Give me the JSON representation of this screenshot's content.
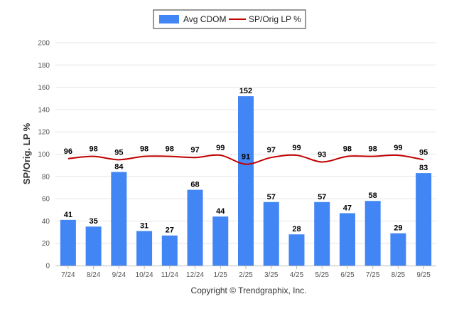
{
  "chart_data": {
    "type": "bar",
    "title": "",
    "ylabel": "SP/Orig. LP %",
    "xlabel": "",
    "ylim": [
      0,
      200
    ],
    "yticks": [
      0,
      20,
      40,
      60,
      80,
      100,
      120,
      140,
      160,
      180,
      200
    ],
    "categories": [
      "7/24",
      "8/24",
      "9/24",
      "10/24",
      "11/24",
      "12/24",
      "1/25",
      "2/25",
      "3/25",
      "4/25",
      "5/25",
      "6/25",
      "7/25",
      "8/25",
      "9/25"
    ],
    "series": [
      {
        "name": "Avg CDOM",
        "type": "bar",
        "color": "#4285f4",
        "values": [
          41,
          35,
          84,
          31,
          27,
          68,
          44,
          152,
          57,
          28,
          57,
          47,
          58,
          29,
          83
        ]
      },
      {
        "name": "SP/Orig LP %",
        "type": "line",
        "color": "#c00000",
        "values": [
          96,
          98,
          95,
          98,
          98,
          97,
          99,
          91,
          97,
          99,
          93,
          98,
          98,
          99,
          95
        ]
      }
    ],
    "legend_position": "top-center",
    "grid": true
  },
  "footer": {
    "copyright": "Copyright © Trendgraphix, Inc."
  }
}
